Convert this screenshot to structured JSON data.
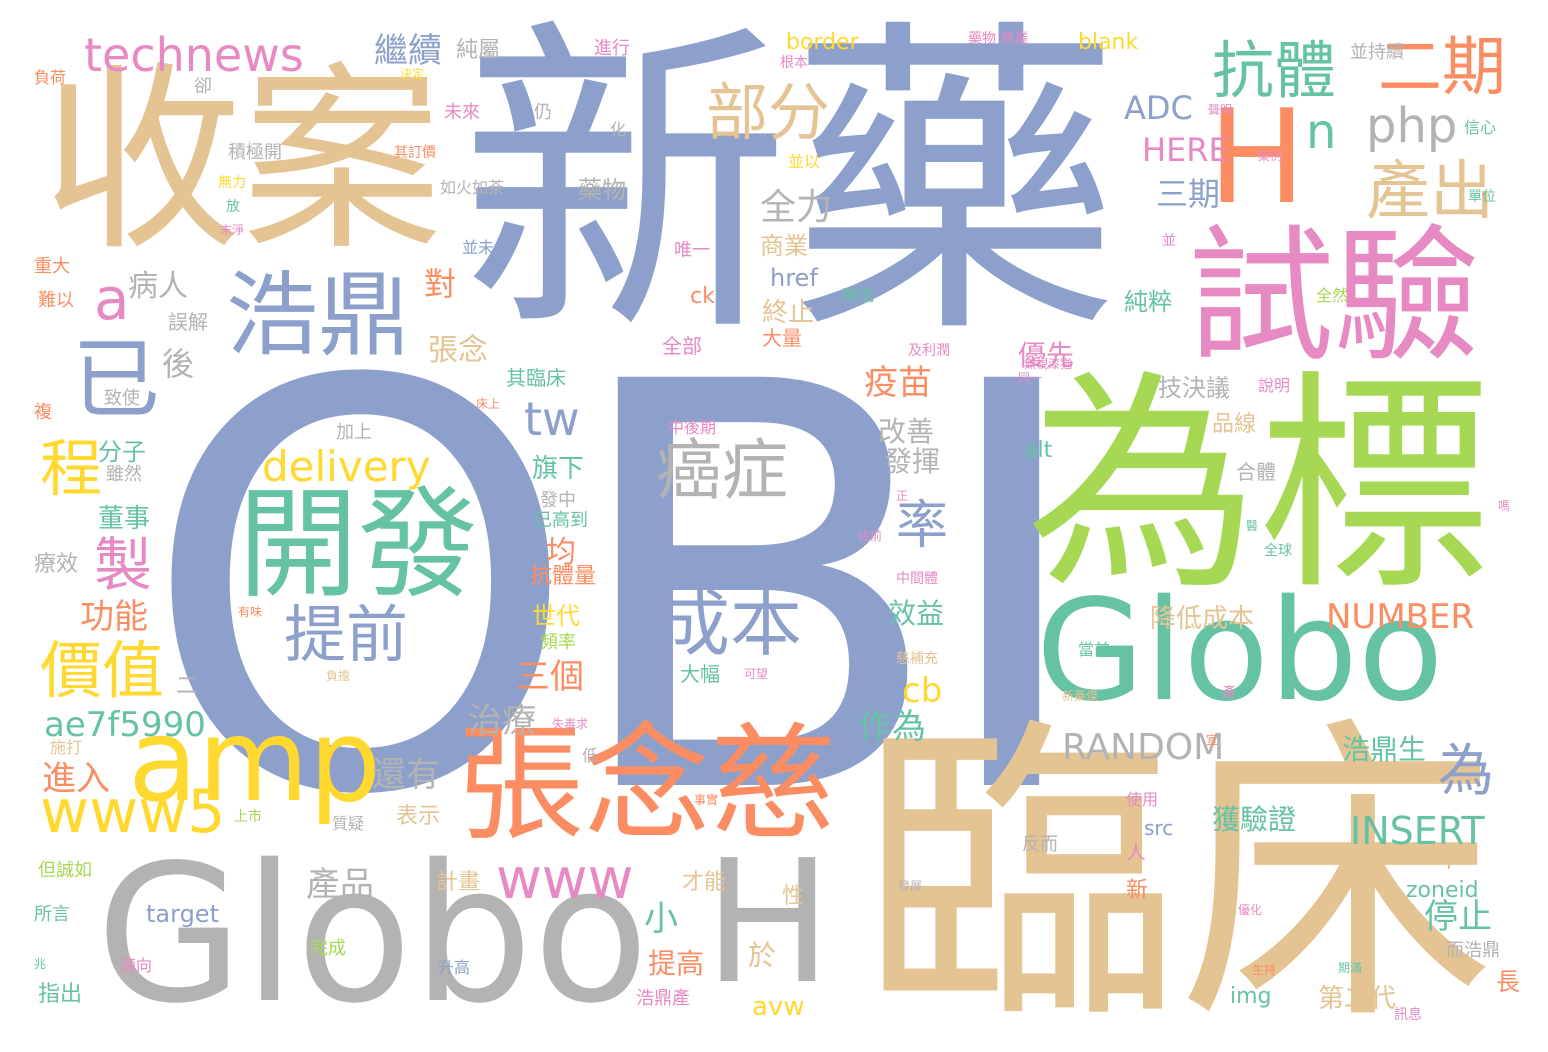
{
  "palette": {
    "blue": "#8da0cb",
    "tan": "#e5c494",
    "green": "#a6d854",
    "teal": "#66c2a5",
    "orange": "#fc8d62",
    "pink": "#e78ac3",
    "yellow": "#ffd92f",
    "gray": "#b3b3b3"
  },
  "words": [
    {
      "text": "OBI",
      "color": "blue"
    },
    {
      "text": "新藥",
      "color": "blue"
    },
    {
      "text": "臨床",
      "color": "tan"
    },
    {
      "text": "收案",
      "color": "tan"
    },
    {
      "text": "為標",
      "color": "green"
    },
    {
      "text": "Globo",
      "color": "teal"
    },
    {
      "text": "Globo",
      "color": "gray"
    },
    {
      "text": "H",
      "color": "gray"
    },
    {
      "text": "H",
      "color": "orange"
    },
    {
      "text": "張念慈",
      "color": "orange"
    },
    {
      "text": "試驗",
      "color": "pink"
    },
    {
      "text": "開發",
      "color": "teal"
    },
    {
      "text": "amp",
      "color": "yellow"
    },
    {
      "text": "浩鼎",
      "color": "blue"
    },
    {
      "text": "抗體",
      "color": "teal"
    },
    {
      "text": "technews",
      "color": "pink"
    },
    {
      "text": "成本",
      "color": "blue"
    },
    {
      "text": "癌症",
      "color": "gray"
    },
    {
      "text": "提前",
      "color": "blue"
    },
    {
      "text": "www5",
      "color": "yellow"
    },
    {
      "text": "www",
      "color": "pink"
    },
    {
      "text": "價值",
      "color": "yellow"
    },
    {
      "text": "部分",
      "color": "tan"
    },
    {
      "text": "二期",
      "color": "orange"
    },
    {
      "text": "產出",
      "color": "tan"
    },
    {
      "text": "php",
      "color": "gray"
    },
    {
      "text": "n",
      "color": "teal"
    },
    {
      "text": "已",
      "color": "blue"
    },
    {
      "text": "a",
      "color": "pink"
    },
    {
      "text": "程",
      "color": "yellow"
    },
    {
      "text": "製",
      "color": "pink"
    },
    {
      "text": "率",
      "color": "blue"
    },
    {
      "text": "tw",
      "color": "blue"
    },
    {
      "text": "delivery",
      "color": "yellow"
    },
    {
      "text": "為",
      "color": "blue"
    },
    {
      "text": "RANDOM",
      "color": "gray"
    },
    {
      "text": "INSERT",
      "color": "teal"
    },
    {
      "text": "NUMBER",
      "color": "orange"
    },
    {
      "text": "ae7f5990",
      "color": "teal"
    },
    {
      "text": "繼續",
      "color": "blue"
    },
    {
      "text": "ADC",
      "color": "blue"
    },
    {
      "text": "HERE",
      "color": "pink"
    },
    {
      "text": "三期",
      "color": "blue"
    },
    {
      "text": "全力",
      "color": "gray"
    },
    {
      "text": "產品",
      "color": "gray"
    },
    {
      "text": "三個",
      "color": "orange"
    },
    {
      "text": "治療",
      "color": "gray"
    },
    {
      "text": "還有",
      "color": "gray"
    },
    {
      "text": "進入",
      "color": "orange"
    },
    {
      "text": "功能",
      "color": "orange"
    },
    {
      "text": "病人",
      "color": "gray"
    },
    {
      "text": "後",
      "color": "gray"
    },
    {
      "text": "對",
      "color": "orange"
    },
    {
      "text": "張念",
      "color": "tan"
    },
    {
      "text": "疫苗",
      "color": "orange"
    },
    {
      "text": "優先",
      "color": "pink"
    },
    {
      "text": "改善",
      "color": "gray"
    },
    {
      "text": "發揮",
      "color": "gray"
    },
    {
      "text": "效益",
      "color": "teal"
    },
    {
      "text": "作為",
      "color": "teal"
    },
    {
      "text": "cb",
      "color": "yellow"
    },
    {
      "text": "停止",
      "color": "teal"
    },
    {
      "text": "小",
      "color": "teal"
    },
    {
      "text": "提高",
      "color": "orange"
    },
    {
      "text": "於",
      "color": "tan"
    },
    {
      "text": "avw",
      "color": "yellow"
    },
    {
      "text": "董事",
      "color": "teal"
    },
    {
      "text": "分子",
      "color": "teal"
    },
    {
      "text": "療效",
      "color": "gray"
    },
    {
      "text": "均",
      "color": "orange"
    },
    {
      "text": "旗下",
      "color": "teal"
    },
    {
      "text": "世代",
      "color": "yellow"
    },
    {
      "text": "抗體量",
      "color": "orange"
    },
    {
      "text": "浩鼎生",
      "color": "teal"
    },
    {
      "text": "獲驗證",
      "color": "teal"
    },
    {
      "text": "第二代",
      "color": "tan"
    },
    {
      "text": "降低成本",
      "color": "tan"
    },
    {
      "text": "純粹",
      "color": "teal"
    },
    {
      "text": "技決議",
      "color": "gray"
    },
    {
      "text": "終止",
      "color": "tan"
    },
    {
      "text": "商業",
      "color": "tan"
    },
    {
      "text": "href",
      "color": "blue"
    },
    {
      "text": "藥物",
      "color": "gray"
    },
    {
      "text": "純屬",
      "color": "gray"
    },
    {
      "text": "border",
      "color": "yellow"
    },
    {
      "text": "blank",
      "color": "yellow"
    },
    {
      "text": "target",
      "color": "blue"
    },
    {
      "text": "zoneid",
      "color": "teal"
    },
    {
      "text": "src",
      "color": "blue"
    },
    {
      "text": "img",
      "color": "teal"
    },
    {
      "text": "alt",
      "color": "teal"
    },
    {
      "text": "ck",
      "color": "orange"
    },
    {
      "text": "中",
      "color": "tan"
    },
    {
      "text": "長",
      "color": "orange"
    },
    {
      "text": "表示",
      "color": "tan"
    },
    {
      "text": "計畫",
      "color": "tan"
    },
    {
      "text": "才能",
      "color": "tan"
    },
    {
      "text": "品線",
      "color": "tan"
    },
    {
      "text": "合體",
      "color": "gray"
    },
    {
      "text": "全部",
      "color": "pink"
    },
    {
      "text": "大量",
      "color": "orange"
    },
    {
      "text": "大幅",
      "color": "teal"
    },
    {
      "text": "指出",
      "color": "teal"
    },
    {
      "text": "完成",
      "color": "green"
    },
    {
      "text": "升高",
      "color": "blue"
    },
    {
      "text": "加上",
      "color": "gray"
    },
    {
      "text": "致使",
      "color": "gray"
    },
    {
      "text": "雖然",
      "color": "gray"
    },
    {
      "text": "誤解",
      "color": "gray"
    },
    {
      "text": "其臨床",
      "color": "teal"
    },
    {
      "text": "中後期",
      "color": "pink"
    },
    {
      "text": "發中",
      "color": "gray"
    },
    {
      "text": "已高到",
      "color": "teal"
    },
    {
      "text": "頻率",
      "color": "green"
    },
    {
      "text": "唯一",
      "color": "pink"
    },
    {
      "text": "人",
      "color": "pink"
    },
    {
      "text": "新",
      "color": "orange"
    },
    {
      "text": "性",
      "color": "tan"
    },
    {
      "text": "二",
      "color": "gray"
    },
    {
      "text": "進行",
      "color": "pink"
    },
    {
      "text": "負荷",
      "color": "orange"
    },
    {
      "text": "卻",
      "color": "gray"
    },
    {
      "text": "未來",
      "color": "pink"
    },
    {
      "text": "仍",
      "color": "gray"
    },
    {
      "text": "化",
      "color": "gray"
    },
    {
      "text": "如火如荼",
      "color": "gray"
    },
    {
      "text": "積極開",
      "color": "gray"
    },
    {
      "text": "其訂價",
      "color": "orange"
    },
    {
      "text": "無力",
      "color": "yellow"
    },
    {
      "text": "放",
      "color": "teal"
    },
    {
      "text": "並以",
      "color": "yellow"
    },
    {
      "text": "並未",
      "color": "blue"
    },
    {
      "text": "並持續",
      "color": "gray"
    },
    {
      "text": "根本",
      "color": "pink"
    },
    {
      "text": "信心",
      "color": "teal"
    },
    {
      "text": "單位",
      "color": "teal"
    },
    {
      "text": "並",
      "color": "pink"
    },
    {
      "text": "全然",
      "color": "green"
    },
    {
      "text": "降低",
      "color": "teal"
    },
    {
      "text": "及利潤",
      "color": "pink"
    },
    {
      "text": "說明",
      "color": "pink"
    },
    {
      "text": "同一",
      "color": "pink"
    },
    {
      "text": "重大",
      "color": "orange"
    },
    {
      "text": "難以",
      "color": "orange"
    },
    {
      "text": "複",
      "color": "orange"
    },
    {
      "text": "但誠如",
      "color": "green"
    },
    {
      "text": "所言",
      "color": "teal"
    },
    {
      "text": "使用",
      "color": "pink"
    },
    {
      "text": "反而",
      "color": "gray"
    },
    {
      "text": "當前",
      "color": "teal"
    },
    {
      "text": "而浩鼎",
      "color": "gray"
    },
    {
      "text": "浩鼎產",
      "color": "pink"
    },
    {
      "text": "上市",
      "color": "green"
    },
    {
      "text": "質疑",
      "color": "gray"
    },
    {
      "text": "低",
      "color": "gray"
    },
    {
      "text": "事實",
      "color": "orange"
    },
    {
      "text": "有味",
      "color": "orange"
    },
    {
      "text": "負擔",
      "color": "tan"
    },
    {
      "text": "兆",
      "color": "teal"
    },
    {
      "text": "適向",
      "color": "pink"
    },
    {
      "text": "施打",
      "color": "tan"
    },
    {
      "text": "產",
      "color": "pink"
    },
    {
      "text": "中間體",
      "color": "pink"
    },
    {
      "text": "慈補充",
      "color": "tan"
    },
    {
      "text": "往前",
      "color": "pink"
    },
    {
      "text": "全球",
      "color": "teal"
    },
    {
      "text": "優化",
      "color": "pink"
    },
    {
      "text": "發展",
      "color": "gray"
    },
    {
      "text": "生持",
      "color": "orange"
    },
    {
      "text": "期滿",
      "color": "teal"
    },
    {
      "text": "訊息",
      "color": "pink"
    },
    {
      "text": "案例",
      "color": "pink"
    },
    {
      "text": "聲明",
      "color": "pink"
    },
    {
      "text": "宣",
      "color": "orange"
    },
    {
      "text": "決定",
      "color": "yellow"
    },
    {
      "text": "末淨",
      "color": "pink"
    },
    {
      "text": "可望",
      "color": "pink"
    },
    {
      "text": "失毒求",
      "color": "pink"
    },
    {
      "text": "新藥傑",
      "color": "tan"
    },
    {
      "text": "正",
      "color": "pink"
    },
    {
      "text": "床上",
      "color": "orange"
    },
    {
      "text": "無視漆猶",
      "color": "pink"
    },
    {
      "text": "藥物 商業",
      "color": "pink"
    },
    {
      "text": "嗎",
      "color": "pink"
    },
    {
      "text": "醫",
      "color": "teal"
    }
  ]
}
